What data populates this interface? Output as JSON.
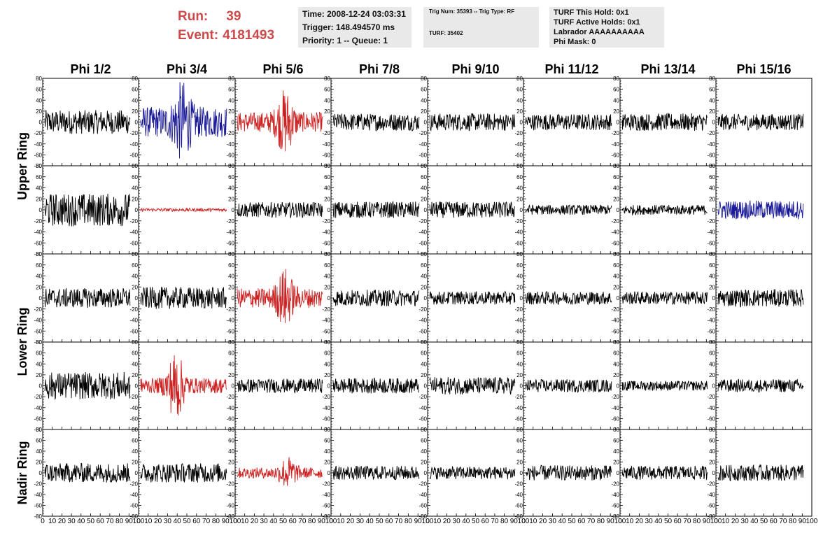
{
  "header": {
    "run_label": "Run:",
    "run_value": "39",
    "event_label": "Event:",
    "event_value": "4181493",
    "time": "Time: 2008-12-24 03:03:31",
    "trigger": "Trigger: 148.494570 ms",
    "priority": "Priority: 1 -- Queue: 1",
    "trig_num": "Trig Num: 35393 -- Trig Type: RF",
    "turf": "TURF: 35402",
    "turf_hold": "TURF This Hold: 0x1",
    "turf_active": "TURF Active Holds: 0x1",
    "labrador": "Labrador AAAAAAAAAA",
    "phi_mask": "Phi Mask: 0",
    "accent_color": "#cd4a4a"
  },
  "columns": [
    "Phi 1/2",
    "Phi 3/4",
    "Phi 5/6",
    "Phi 7/8",
    "Phi 9/10",
    "Phi 11/12",
    "Phi 13/14",
    "Phi 15/16"
  ],
  "rows": [
    "Upper Ring",
    "Lower Ring",
    "Nadir Ring"
  ],
  "chart_data": {
    "type": "line",
    "xlim": [
      0,
      100
    ],
    "ylim": [
      -80,
      80
    ],
    "y_ticks": [
      -80,
      -60,
      -40,
      -20,
      0,
      20,
      40,
      60,
      80
    ],
    "x_tick_labels": [
      "0",
      "10",
      "20",
      "30",
      "40",
      "50",
      "60",
      "70",
      "80",
      "90",
      "100"
    ],
    "colors": {
      "normal": "#000000",
      "hpol": "#cc2222",
      "vpol": "#1a1a99"
    },
    "panels": [
      [
        {
          "color": "normal",
          "amp": 22
        },
        {
          "color": "vpol",
          "amp": 28,
          "burst": [
            45,
            50
          ]
        },
        {
          "color": "hpol",
          "amp": 18,
          "burst": [
            52,
            45
          ]
        },
        {
          "color": "normal",
          "amp": 16
        },
        {
          "color": "normal",
          "amp": 16
        },
        {
          "color": "normal",
          "amp": 15
        },
        {
          "color": "normal",
          "amp": 16
        },
        {
          "color": "normal",
          "amp": 15
        }
      ],
      [
        {
          "color": "normal",
          "amp": 30
        },
        {
          "color": "hpol",
          "amp": 3
        },
        {
          "color": "normal",
          "amp": 14
        },
        {
          "color": "normal",
          "amp": 15
        },
        {
          "color": "normal",
          "amp": 15
        },
        {
          "color": "normal",
          "amp": 9
        },
        {
          "color": "normal",
          "amp": 9
        },
        {
          "color": "vpol",
          "amp": 17
        }
      ],
      [
        {
          "color": "normal",
          "amp": 18
        },
        {
          "color": "normal",
          "amp": 20
        },
        {
          "color": "hpol",
          "amp": 18,
          "burst": [
            52,
            38
          ]
        },
        {
          "color": "normal",
          "amp": 15
        },
        {
          "color": "normal",
          "amp": 12
        },
        {
          "color": "normal",
          "amp": 12
        },
        {
          "color": "normal",
          "amp": 12
        },
        {
          "color": "normal",
          "amp": 16
        }
      ],
      [
        {
          "color": "normal",
          "amp": 25
        },
        {
          "color": "hpol",
          "amp": 14,
          "burst": [
            38,
            52
          ]
        },
        {
          "color": "normal",
          "amp": 13
        },
        {
          "color": "normal",
          "amp": 14
        },
        {
          "color": "normal",
          "amp": 16
        },
        {
          "color": "normal",
          "amp": 12
        },
        {
          "color": "normal",
          "amp": 9
        },
        {
          "color": "normal",
          "amp": 12
        }
      ],
      [
        {
          "color": "normal",
          "amp": 18
        },
        {
          "color": "normal",
          "amp": 18
        },
        {
          "color": "hpol",
          "amp": 10,
          "burst": [
            55,
            22
          ]
        },
        {
          "color": "normal",
          "amp": 13
        },
        {
          "color": "normal",
          "amp": 12
        },
        {
          "color": "normal",
          "amp": 14
        },
        {
          "color": "normal",
          "amp": 13
        },
        {
          "color": "normal",
          "amp": 15
        }
      ]
    ]
  }
}
